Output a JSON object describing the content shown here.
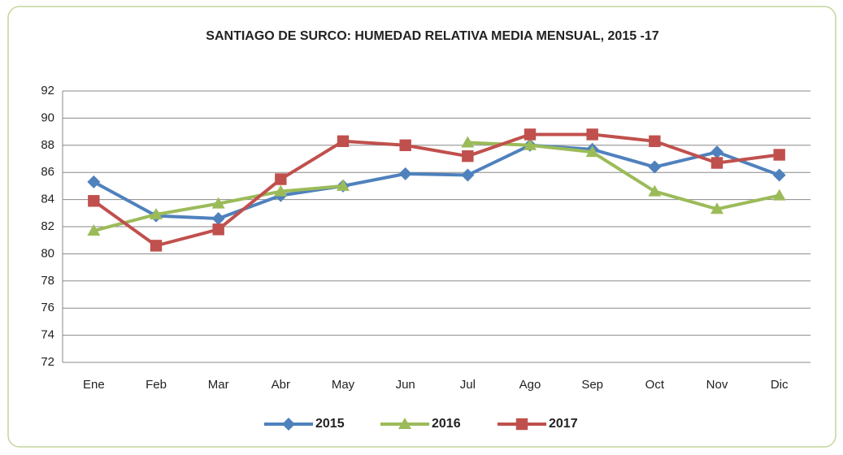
{
  "chart_data": {
    "type": "line",
    "title": "SANTIAGO DE SURCO: HUMEDAD RELATIVA MEDIA MENSUAL, 2015 -17",
    "categories": [
      "Ene",
      "Feb",
      "Mar",
      "Abr",
      "May",
      "Jun",
      "Jul",
      "Ago",
      "Sep",
      "Oct",
      "Nov",
      "Dic"
    ],
    "series": [
      {
        "name": "2015",
        "color": "#4f81bd",
        "marker": "diamond",
        "values": [
          85.3,
          82.8,
          82.6,
          84.3,
          85.0,
          85.9,
          85.8,
          88.0,
          87.7,
          86.4,
          87.5,
          85.8
        ]
      },
      {
        "name": "2016",
        "color": "#9bbb59",
        "marker": "triangle",
        "values": [
          81.7,
          82.9,
          83.7,
          84.6,
          85.0,
          null,
          88.2,
          88.0,
          87.5,
          84.6,
          83.3,
          84.3
        ]
      },
      {
        "name": "2017",
        "color": "#c0504d",
        "marker": "square",
        "values": [
          83.9,
          80.6,
          81.8,
          85.5,
          88.3,
          88.0,
          87.2,
          88.8,
          88.8,
          88.3,
          86.7,
          87.3
        ]
      }
    ],
    "ylim": [
      72,
      92
    ],
    "yticks": [
      72,
      74,
      76,
      78,
      80,
      82,
      84,
      86,
      88,
      90,
      92
    ],
    "grid": true,
    "legend": "bottom"
  }
}
